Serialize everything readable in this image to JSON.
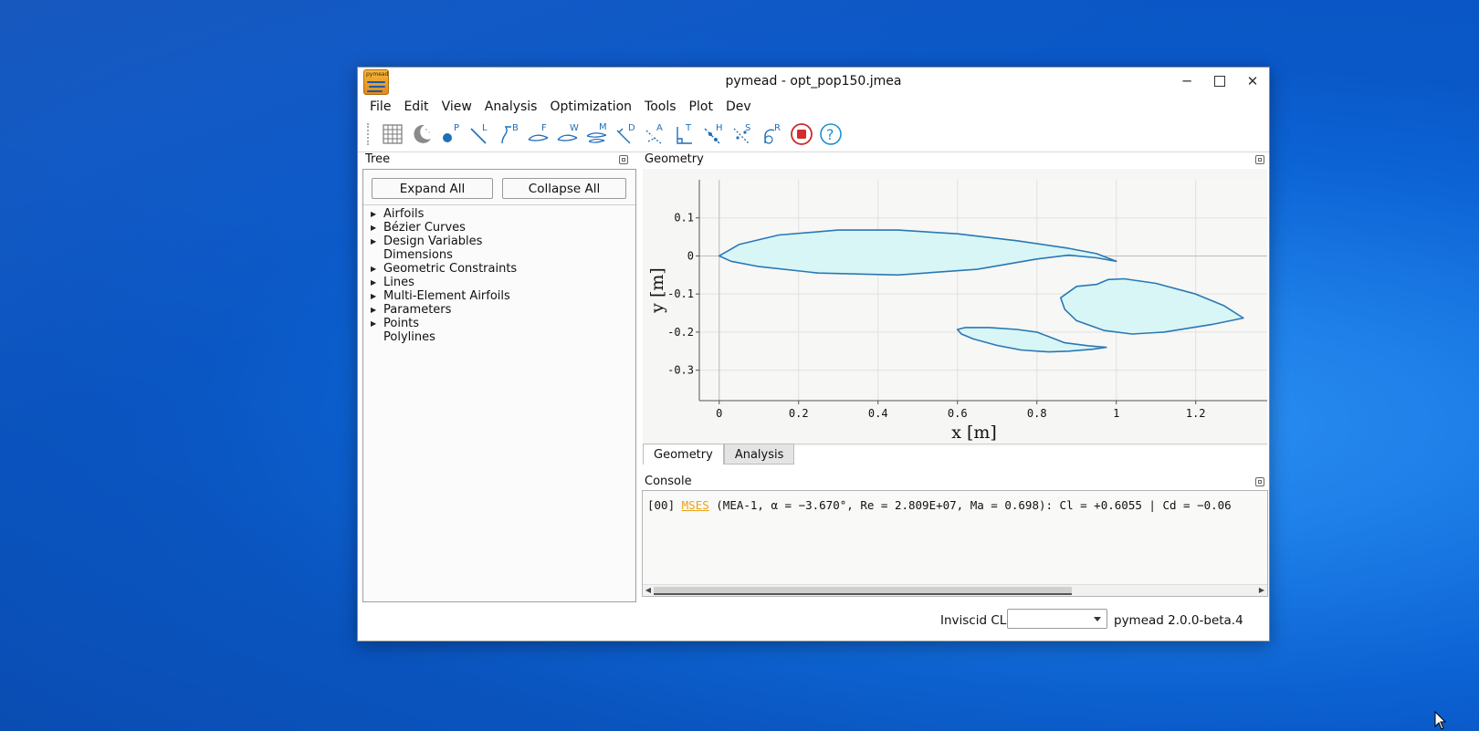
{
  "window": {
    "title": "pymead - opt_pop150.jmea",
    "icon_label": "pymead",
    "controls": [
      "minimize",
      "maximize",
      "close"
    ]
  },
  "menubar": [
    "File",
    "Edit",
    "View",
    "Analysis",
    "Optimization",
    "Tools",
    "Plot",
    "Dev"
  ],
  "toolbar": {
    "icons": [
      "grid-icon",
      "dark-mode-icon",
      "point-P-icon",
      "line-L-icon",
      "bezier-B-icon",
      "ferguson-F-icon",
      "web-W-icon",
      "mea-M-icon",
      "distance-D-icon",
      "angle-A-icon",
      "perpendicular-T-icon",
      "hinge-H-icon",
      "symmetry-S-icon",
      "roc-R-icon",
      "stop-icon",
      "help-icon"
    ],
    "letters": [
      "P",
      "L",
      "B",
      "F",
      "W",
      "M",
      "D",
      "A",
      "T",
      "H",
      "S",
      "R"
    ]
  },
  "tree": {
    "title": "Tree",
    "expand_all": "Expand All",
    "collapse_all": "Collapse All",
    "items": [
      {
        "label": "Airfoils",
        "expandable": true
      },
      {
        "label": "Bézier Curves",
        "expandable": true
      },
      {
        "label": "Design Variables",
        "expandable": true
      },
      {
        "label": "Dimensions",
        "expandable": false
      },
      {
        "label": "Geometric Constraints",
        "expandable": true
      },
      {
        "label": "Lines",
        "expandable": true
      },
      {
        "label": "Multi-Element Airfoils",
        "expandable": true
      },
      {
        "label": "Parameters",
        "expandable": true
      },
      {
        "label": "Points",
        "expandable": true
      },
      {
        "label": "Polylines",
        "expandable": false
      }
    ]
  },
  "geometry": {
    "title": "Geometry",
    "fill_color": "#d8f6f6",
    "stroke_color": "#2a78b4"
  },
  "chart_data": {
    "type": "line",
    "xlabel": "x [m]",
    "ylabel": "y [m]",
    "xlim": [
      -0.05,
      1.38
    ],
    "ylim": [
      -0.38,
      0.2
    ],
    "xticks": [
      0,
      0.2,
      0.4,
      0.6,
      0.8,
      1,
      1.2
    ],
    "yticks": [
      0.1,
      0,
      -0.1,
      -0.2,
      -0.3
    ],
    "xtick_labels": [
      "0",
      "0.2",
      "0.4",
      "0.6",
      "0.8",
      "1",
      "1.2"
    ],
    "ytick_labels": [
      "0.1",
      "0",
      "-0.1",
      "-0.2",
      "-0.3"
    ],
    "grid": true,
    "series": [
      {
        "x": [
          0,
          0.05,
          0.15,
          0.3,
          0.45,
          0.6,
          0.75,
          0.88,
          0.95,
          1.0,
          0.95,
          0.88,
          0.8,
          0.65,
          0.45,
          0.25,
          0.1,
          0.03,
          0
        ],
        "y": [
          0,
          0.03,
          0.055,
          0.068,
          0.068,
          0.058,
          0.04,
          0.02,
          0.006,
          -0.014,
          -0.005,
          0.002,
          -0.008,
          -0.035,
          -0.05,
          -0.045,
          -0.028,
          -0.014,
          0
        ]
      },
      {
        "x": [
          0.86,
          0.9,
          0.95,
          0.98,
          1.02,
          1.1,
          1.2,
          1.27,
          1.32,
          1.24,
          1.12,
          1.04,
          0.97,
          0.9,
          0.87,
          0.86
        ],
        "y": [
          -0.11,
          -0.08,
          -0.075,
          -0.062,
          -0.06,
          -0.072,
          -0.1,
          -0.13,
          -0.163,
          -0.18,
          -0.2,
          -0.205,
          -0.196,
          -0.17,
          -0.14,
          -0.11
        ]
      },
      {
        "x": [
          0.6,
          0.62,
          0.68,
          0.75,
          0.8,
          0.83,
          0.87,
          0.93,
          0.975,
          0.94,
          0.88,
          0.83,
          0.76,
          0.7,
          0.64,
          0.61,
          0.6
        ],
        "y": [
          -0.193,
          -0.188,
          -0.188,
          -0.193,
          -0.2,
          -0.212,
          -0.228,
          -0.236,
          -0.24,
          -0.245,
          -0.25,
          -0.252,
          -0.247,
          -0.235,
          -0.218,
          -0.205,
          -0.193
        ]
      }
    ]
  },
  "tabs": [
    "Geometry",
    "Analysis"
  ],
  "console": {
    "title": "Console",
    "line_prefix": "[00] ",
    "line_tag": "MSES",
    "line_rest": " (MEA-1, α = −3.670°, Re = 2.809E+07, Ma = 0.698): Cl = +0.6055 | Cd = −0.06"
  },
  "status": {
    "label": "Inviscid CL",
    "combo_value": "",
    "version": "pymead 2.0.0-beta.4"
  }
}
